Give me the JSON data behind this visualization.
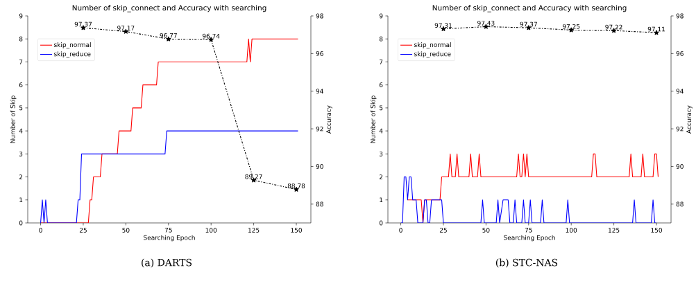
{
  "chart_data": [
    {
      "type": "line",
      "title": "Number of skip_connect and Accuracy with searching",
      "xlabel": "Searching Epoch",
      "ylabel": "Number of Skip",
      "y2label": "Accuracy",
      "xlim": [
        -7.55,
        158.55
      ],
      "xticks": [
        0,
        25,
        50,
        75,
        100,
        125,
        150
      ],
      "ylim": [
        0,
        9
      ],
      "yticks": [
        0,
        1,
        2,
        3,
        4,
        5,
        6,
        7,
        8,
        9
      ],
      "y2lim": [
        87,
        98
      ],
      "y2ticks": [
        88,
        90,
        92,
        94,
        96,
        98
      ],
      "legend": "top left",
      "annotations": [
        "(a) DARTS"
      ],
      "series": [
        {
          "name": "skip_normal",
          "color": "#ff0000",
          "x": [
            0,
            28,
            29,
            30,
            31,
            35,
            36,
            45,
            46,
            53,
            54,
            59,
            60,
            68,
            69,
            121,
            122,
            123,
            124,
            151
          ],
          "values": [
            0,
            0,
            1,
            1,
            2,
            2,
            3,
            3,
            4,
            4,
            5,
            5,
            6,
            6,
            7,
            7,
            8,
            7,
            8,
            8
          ]
        },
        {
          "name": "skip_reduce",
          "color": "#0000ff",
          "x": [
            0,
            1,
            2,
            3,
            4,
            21,
            22,
            23,
            24,
            73,
            74,
            151
          ],
          "values": [
            0,
            1,
            0,
            1,
            0,
            0,
            1,
            1,
            3,
            3,
            4,
            4
          ]
        },
        {
          "color": "#000000",
          "axis": "y2",
          "marker": "star",
          "line_style": "dashdot",
          "data_labels": true,
          "x": [
            25,
            50,
            75,
            100,
            125,
            150
          ],
          "values": [
            97.37,
            97.17,
            96.77,
            96.74,
            89.27,
            88.78
          ]
        }
      ]
    },
    {
      "type": "line",
      "title": "Number of skip_connect and Accuracy with searching",
      "xlabel": "Searching Epoch",
      "ylabel": "Number of Skip",
      "y2label": "Accuracy",
      "xlim": [
        -7.55,
        158.55
      ],
      "xticks": [
        0,
        25,
        50,
        75,
        100,
        125,
        150
      ],
      "ylim": [
        0,
        9
      ],
      "yticks": [
        0,
        1,
        2,
        3,
        4,
        5,
        6,
        7,
        8,
        9
      ],
      "y2lim": [
        87,
        98
      ],
      "y2ticks": [
        88,
        90,
        92,
        94,
        96,
        98
      ],
      "legend": "top left",
      "annotations": [
        "(b) STC-NAS"
      ],
      "series": [
        {
          "name": "skip_normal",
          "color": "#ff0000",
          "x": [
            4,
            12,
            13,
            14,
            23,
            24,
            28,
            29,
            30,
            32,
            33,
            34,
            40,
            41,
            42,
            45,
            46,
            47,
            68,
            69,
            70,
            71,
            72,
            73,
            74,
            75,
            112,
            113,
            114,
            115,
            134,
            135,
            136,
            141,
            142,
            143,
            148,
            149,
            150,
            151
          ],
          "values": [
            1,
            1,
            0,
            1,
            1,
            2,
            2,
            3,
            2,
            2,
            3,
            2,
            2,
            3,
            2,
            2,
            3,
            2,
            2,
            3,
            2,
            2,
            3,
            2,
            3,
            2,
            2,
            3,
            3,
            2,
            2,
            3,
            2,
            2,
            3,
            2,
            2,
            3,
            3,
            2
          ]
        },
        {
          "name": "skip_reduce",
          "color": "#0000ff",
          "x": [
            0,
            1,
            2,
            3,
            4,
            5,
            6,
            7,
            9,
            10,
            13,
            14,
            15,
            16,
            17,
            18,
            24,
            25,
            47,
            48,
            49,
            56,
            57,
            58,
            60,
            63,
            64,
            66,
            67,
            68,
            71,
            72,
            73,
            75,
            76,
            77,
            82,
            83,
            84,
            97,
            98,
            99,
            136,
            137,
            138,
            147,
            148,
            149,
            150
          ],
          "values": [
            0,
            0,
            2,
            2,
            1,
            2,
            2,
            1,
            1,
            0,
            0,
            1,
            1,
            0,
            0,
            1,
            1,
            0,
            0,
            1,
            0,
            0,
            1,
            0,
            1,
            1,
            0,
            0,
            1,
            0,
            0,
            1,
            0,
            0,
            1,
            0,
            0,
            1,
            0,
            0,
            1,
            0,
            0,
            1,
            0,
            0,
            1,
            0,
            0
          ]
        },
        {
          "color": "#000000",
          "axis": "y2",
          "marker": "star",
          "line_style": "dashdot",
          "data_labels": true,
          "x": [
            25,
            50,
            75,
            100,
            125,
            150
          ],
          "values": [
            97.31,
            97.43,
            97.37,
            97.25,
            97.22,
            97.11
          ]
        }
      ]
    }
  ]
}
